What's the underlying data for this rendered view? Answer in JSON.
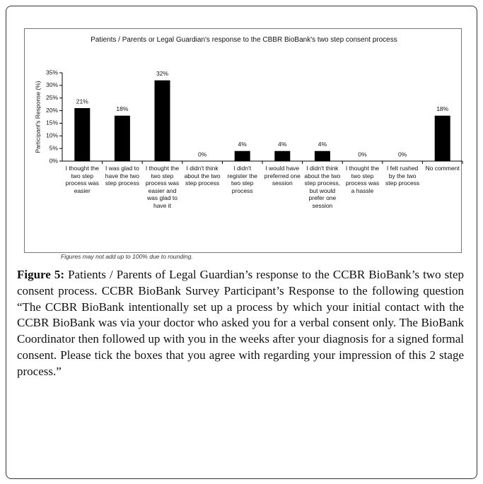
{
  "chart_data": {
    "type": "bar",
    "title": "Patients / Parents or Legal Guardian's response to the CBBR BioBank's two step consent process",
    "y_label": "Participant's Response (%)",
    "categories": [
      "I thought the two step process was easier",
      "I was glad to have the two step process",
      "I thought the two step process was easier and was glad to have it",
      "I didn't think about the two step process",
      "I didn't register the two step process",
      "I would have preferred one session",
      "I didn't think about the two step process, but would prefer one session",
      "I thought the two step process was a hassle",
      "I felt rushed by the two step process",
      "No comment"
    ],
    "values": [
      21,
      18,
      32,
      0,
      4,
      4,
      4,
      0,
      0,
      18
    ],
    "value_labels": [
      "21%",
      "18%",
      "32%",
      "0%",
      "4%",
      "4%",
      "4%",
      "0%",
      "0%",
      "18%"
    ],
    "color": "#000000",
    "ylim": [
      0,
      35
    ],
    "yticks": [
      {
        "value": 0,
        "label": "0%"
      },
      {
        "value": 5,
        "label": "5%"
      },
      {
        "value": 10,
        "label": "10%"
      },
      {
        "value": 15,
        "label": "15%"
      },
      {
        "value": 20,
        "label": "20%"
      },
      {
        "value": 25,
        "label": "25%"
      },
      {
        "value": 30,
        "label": "30%"
      },
      {
        "value": 35,
        "label": "35%"
      }
    ],
    "note": "Figures may not add up to 100% due to rounding."
  },
  "caption": {
    "label": "Figure 5:",
    "text": "Patients / Parents of Legal Guardian’s response to the CCBR BioBank’s two step consent process. CCBR BioBank Survey Participant’s Response to the following question “The CCBR BioBank intentionally set up a process by which your initial contact with the CCBR BioBank was via your doctor who asked you for a verbal consent only. The BioBank Coordinator then followed up with you in the weeks after your diagnosis for a signed formal consent. Please tick the boxes that you agree with regarding your impression of this 2 stage process.”"
  }
}
